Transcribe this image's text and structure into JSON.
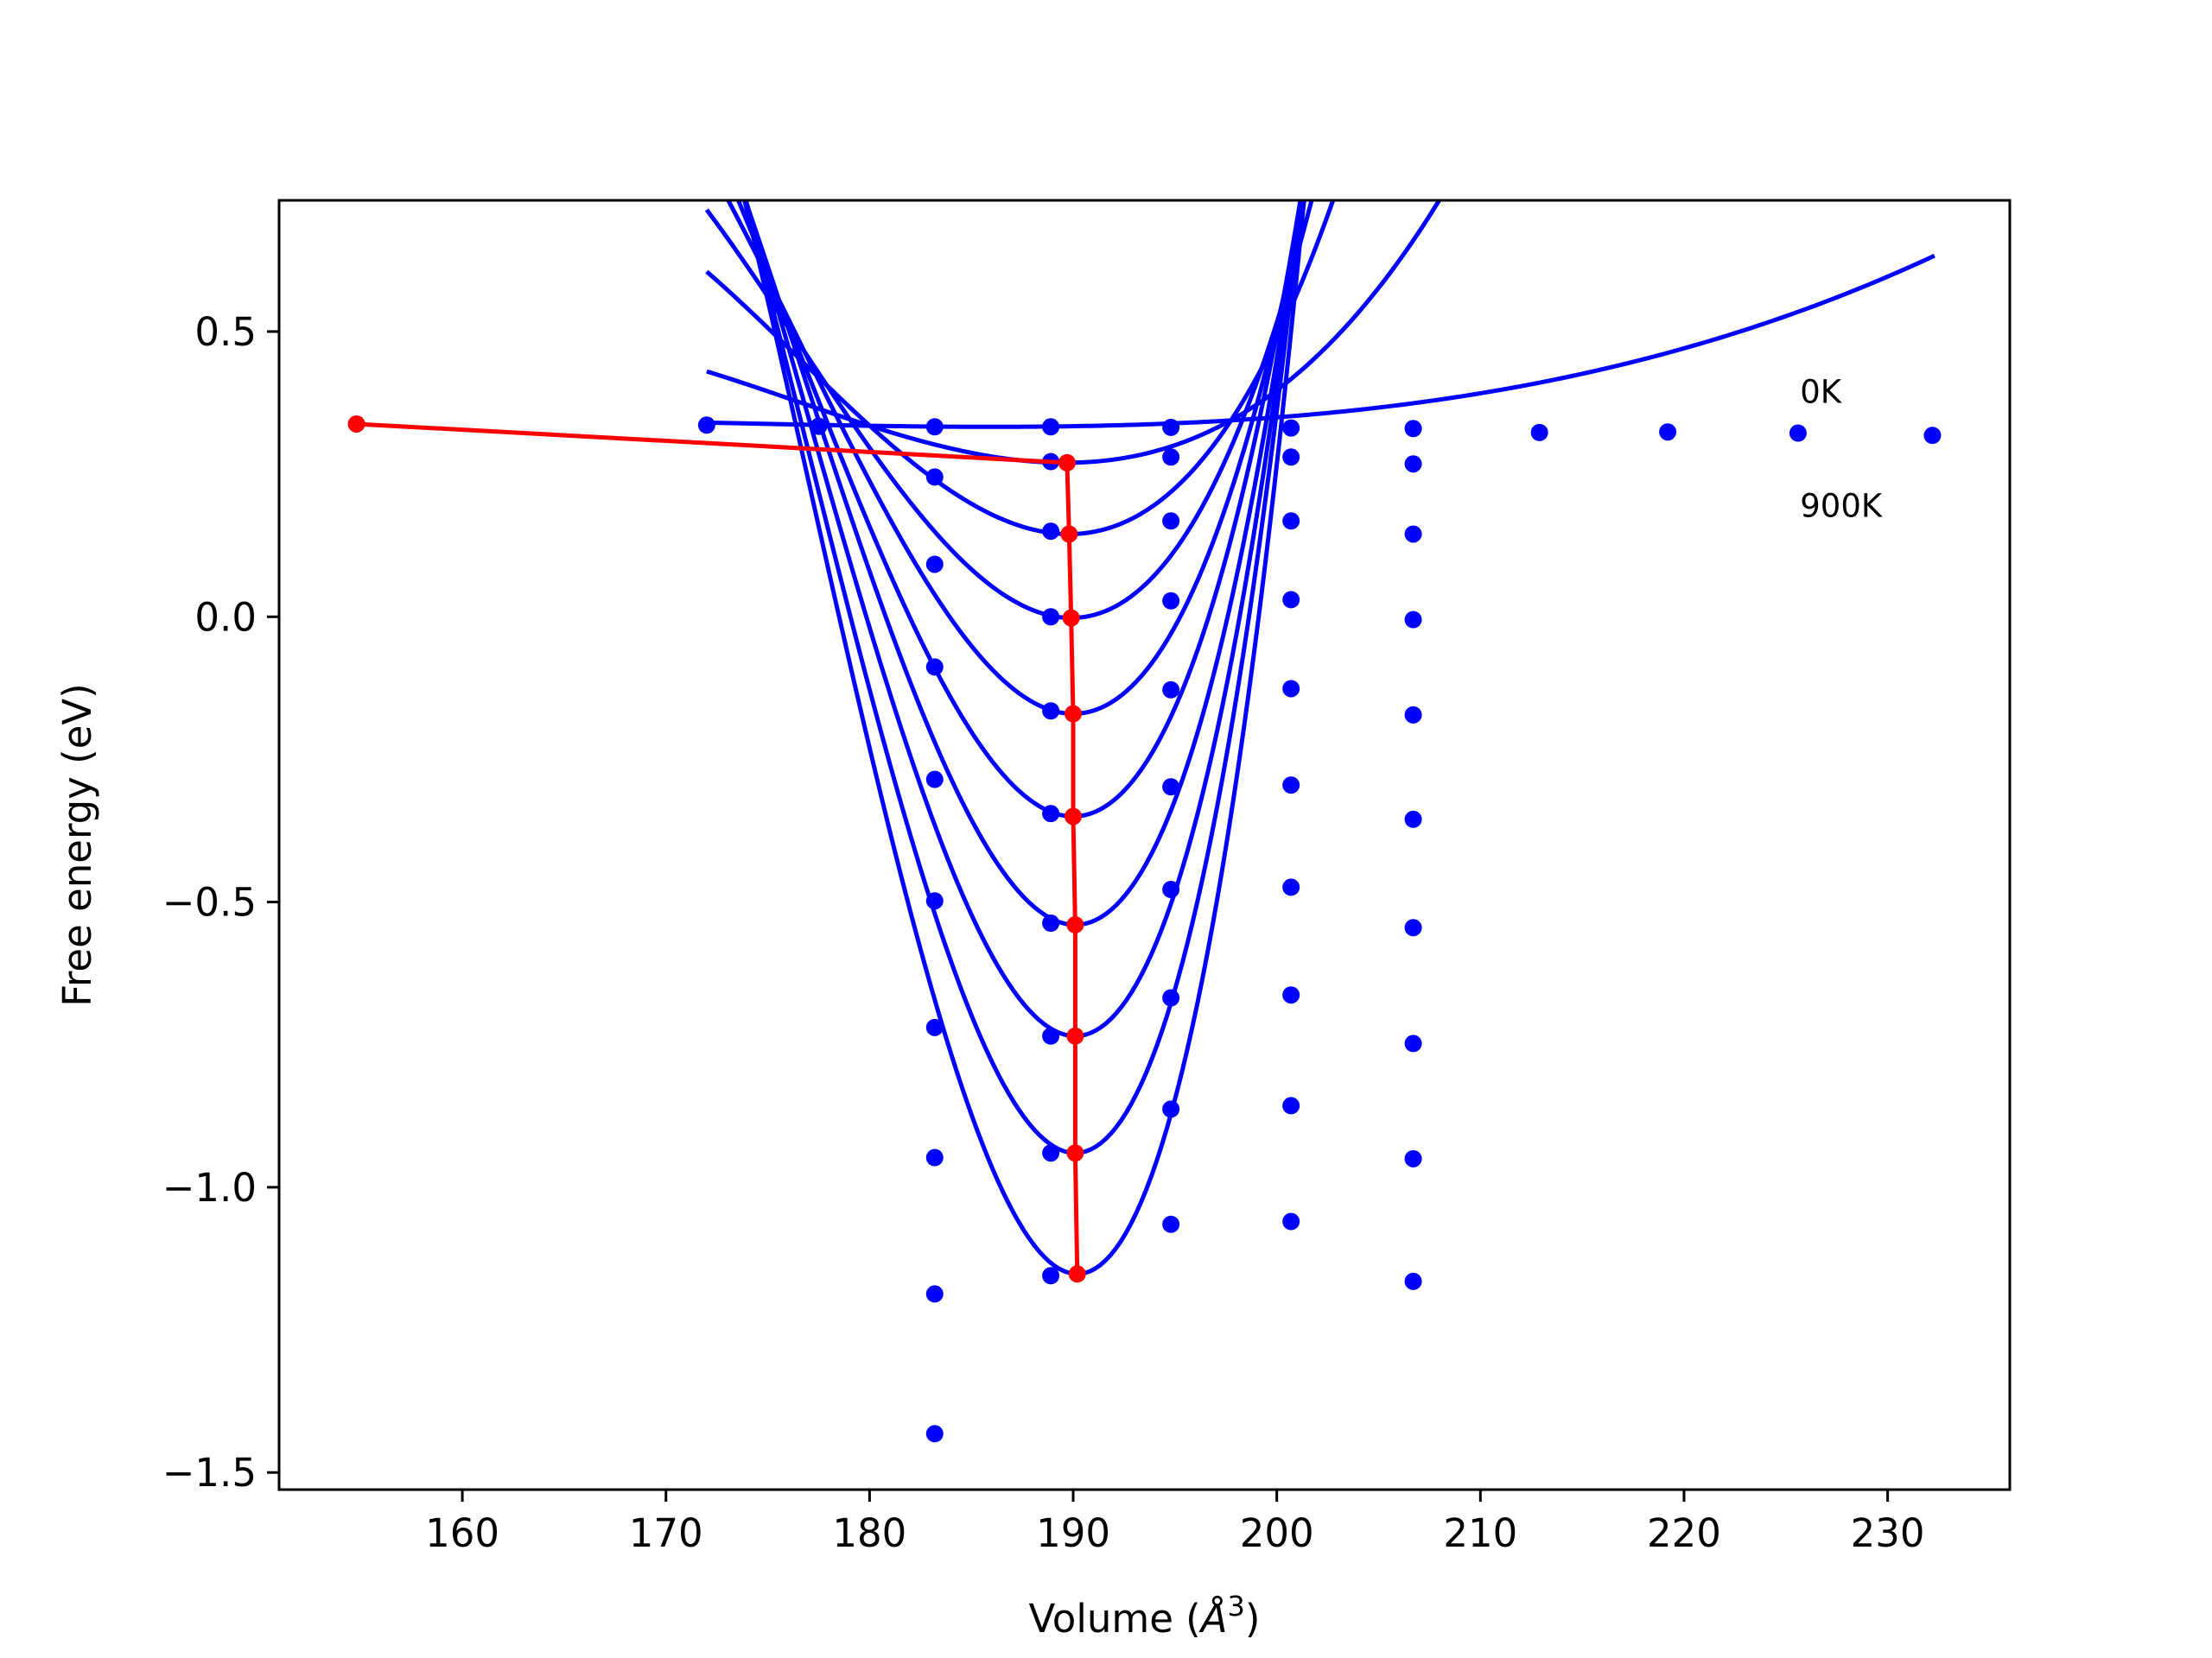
{
  "chart_data": {
    "type": "line",
    "xlabel": "Volume (",
    "xlabel_unit": "Å",
    "xlabel_sup": "3",
    "xlabel_end": ")",
    "ylabel": "Free energy (eV)",
    "xlim": [
      151,
      236
    ],
    "ylim": [
      -1.53,
      0.73
    ],
    "grid": false,
    "xticks": [
      160,
      170,
      180,
      190,
      200,
      210,
      220,
      230
    ],
    "xtick_labels": [
      "160",
      "170",
      "180",
      "190",
      "200",
      "210",
      "220",
      "230"
    ],
    "yticks": [
      0.5,
      0.0,
      -0.5,
      -1.0,
      -1.5
    ],
    "ytick_labels": [
      "0.5",
      "0.0",
      "−0.5",
      "−1.0",
      "−1.5"
    ],
    "annotations": [
      {
        "text": "0K",
        "x": 225.7,
        "y": 0.375
      },
      {
        "text": "900K",
        "x": 225.7,
        "y": 0.175
      }
    ],
    "colors": {
      "fit": "#0000ff",
      "points": "#0000ff",
      "minimum": "#ff0000"
    },
    "fit_curves": [
      {
        "Fmin": 0.333,
        "V0": 186.0,
        "c": 3.4e-06
      },
      {
        "Fmin": 0.27,
        "V0": 189.6,
        "c": 4.7e-05
      },
      {
        "Fmin": 0.145,
        "V0": 189.8,
        "c": 0.000132
      },
      {
        "Fmin": -0.002,
        "V0": 189.9,
        "c": 0.000203
      },
      {
        "Fmin": -0.17,
        "V0": 190.0,
        "c": 0.000272
      },
      {
        "Fmin": -0.35,
        "V0": 190.0,
        "c": 0.000339
      },
      {
        "Fmin": -0.54,
        "V0": 190.1,
        "c": 0.000405
      },
      {
        "Fmin": -0.735,
        "V0": 190.1,
        "c": 0.000468
      },
      {
        "Fmin": -0.94,
        "V0": 190.1,
        "c": 0.000531
      },
      {
        "Fmin": -1.152,
        "V0": 190.2,
        "c": 0.000591
      }
    ],
    "fit_range": [
      172.0,
      232.3
    ],
    "data_points": [
      {
        "x": 172.0,
        "y": 0.336
      },
      {
        "x": 177.5,
        "y": 0.334
      },
      {
        "x": 183.2,
        "y": 0.333
      },
      {
        "x": 188.9,
        "y": 0.333
      },
      {
        "x": 194.8,
        "y": 0.332
      },
      {
        "x": 200.7,
        "y": 0.331
      },
      {
        "x": 206.7,
        "y": 0.33
      },
      {
        "x": 212.9,
        "y": 0.323
      },
      {
        "x": 219.2,
        "y": 0.324
      },
      {
        "x": 225.6,
        "y": 0.322
      },
      {
        "x": 232.2,
        "y": 0.318
      },
      {
        "x": 183.2,
        "y": 0.245
      },
      {
        "x": 188.9,
        "y": 0.272
      },
      {
        "x": 194.8,
        "y": 0.28
      },
      {
        "x": 200.7,
        "y": 0.28
      },
      {
        "x": 206.7,
        "y": 0.268
      },
      {
        "x": 183.2,
        "y": 0.092
      },
      {
        "x": 188.9,
        "y": 0.15
      },
      {
        "x": 194.8,
        "y": 0.168
      },
      {
        "x": 200.7,
        "y": 0.168
      },
      {
        "x": 206.7,
        "y": 0.145
      },
      {
        "x": 183.2,
        "y": -0.088
      },
      {
        "x": 188.9,
        "y": 0.0
      },
      {
        "x": 194.8,
        "y": 0.028
      },
      {
        "x": 200.7,
        "y": 0.03
      },
      {
        "x": 206.7,
        "y": -0.005
      },
      {
        "x": 183.2,
        "y": -0.285
      },
      {
        "x": 188.9,
        "y": -0.165
      },
      {
        "x": 194.8,
        "y": -0.128
      },
      {
        "x": 200.7,
        "y": -0.126
      },
      {
        "x": 206.7,
        "y": -0.172
      },
      {
        "x": 183.2,
        "y": -0.498
      },
      {
        "x": 188.9,
        "y": -0.345
      },
      {
        "x": 194.8,
        "y": -0.298
      },
      {
        "x": 200.7,
        "y": -0.295
      },
      {
        "x": 206.7,
        "y": -0.355
      },
      {
        "x": 183.2,
        "y": -0.72
      },
      {
        "x": 188.9,
        "y": -0.537
      },
      {
        "x": 194.8,
        "y": -0.478
      },
      {
        "x": 200.7,
        "y": -0.474
      },
      {
        "x": 206.7,
        "y": -0.545
      },
      {
        "x": 188.9,
        "y": -0.735
      },
      {
        "x": 194.8,
        "y": -0.668
      },
      {
        "x": 200.7,
        "y": -0.663
      },
      {
        "x": 206.7,
        "y": -0.748
      },
      {
        "x": 183.2,
        "y": -0.948
      },
      {
        "x": 188.9,
        "y": -0.94
      },
      {
        "x": 194.8,
        "y": -0.863
      },
      {
        "x": 200.7,
        "y": -0.857
      },
      {
        "x": 206.7,
        "y": -0.95
      },
      {
        "x": 183.2,
        "y": -1.187
      },
      {
        "x": 188.9,
        "y": -1.155
      },
      {
        "x": 194.8,
        "y": -1.065
      },
      {
        "x": 200.7,
        "y": -1.06
      },
      {
        "x": 206.7,
        "y": -1.165
      },
      {
        "x": 183.2,
        "y": -1.432
      }
    ],
    "min_line": [
      {
        "x": 154.8,
        "y": 0.338
      },
      {
        "x": 189.7,
        "y": 0.27
      },
      {
        "x": 189.8,
        "y": 0.145
      },
      {
        "x": 189.9,
        "y": -0.002
      },
      {
        "x": 190.0,
        "y": -0.17
      },
      {
        "x": 190.0,
        "y": -0.35
      },
      {
        "x": 190.1,
        "y": -0.54
      },
      {
        "x": 190.1,
        "y": -0.735
      },
      {
        "x": 190.1,
        "y": -0.94
      },
      {
        "x": 190.2,
        "y": -1.152
      }
    ]
  }
}
